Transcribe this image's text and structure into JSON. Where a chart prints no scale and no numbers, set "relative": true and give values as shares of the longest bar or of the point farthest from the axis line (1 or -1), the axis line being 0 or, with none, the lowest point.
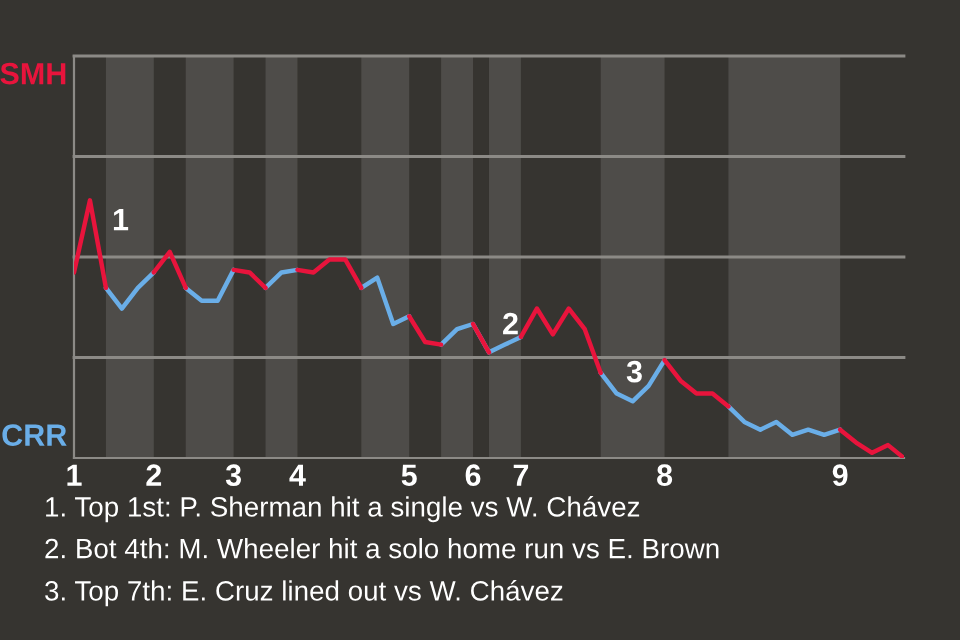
{
  "chart_data": {
    "type": "line",
    "categories": [
      "1",
      null,
      null,
      null,
      null,
      "2",
      null,
      null,
      null,
      null,
      "3",
      null,
      null,
      null,
      "4",
      null,
      null,
      null,
      null,
      null,
      null,
      "5",
      null,
      null,
      null,
      "6",
      null,
      null,
      "7",
      null,
      null,
      null,
      null,
      null,
      null,
      null,
      null,
      "8",
      null,
      null,
      null,
      null,
      null,
      null,
      null,
      null,
      null,
      null,
      "9",
      null,
      null,
      null,
      null
    ],
    "relative": true,
    "series": [
      {
        "name": "SMH",
        "color": "#e8143c",
        "values": [
          0.72,
          1,
          0.66,
          null,
          null,
          0.72,
          0.8,
          0.66,
          null,
          null,
          0.73,
          0.72,
          0.66,
          null,
          0.73,
          0.72,
          0.77,
          0.77,
          0.66,
          null,
          null,
          0.55,
          0.45,
          0.44,
          null,
          0.52,
          0.41,
          null,
          0.47,
          0.58,
          0.48,
          0.58,
          0.5,
          0.33,
          null,
          null,
          null,
          0.38,
          0.3,
          0.25,
          0.25,
          0.2,
          null,
          null,
          null,
          null,
          null,
          null,
          0.11,
          0.06,
          0.02,
          0.05,
          0
        ]
      },
      {
        "name": "CRR",
        "color": "#6aaee8",
        "values": [
          null,
          null,
          0.66,
          0.58,
          0.66,
          0.72,
          null,
          0.66,
          0.61,
          0.61,
          0.73,
          null,
          0.66,
          0.72,
          0.73,
          null,
          null,
          null,
          0.66,
          0.7,
          0.52,
          0.55,
          null,
          0.44,
          0.5,
          0.52,
          0.41,
          0.44,
          0.47,
          null,
          null,
          null,
          null,
          0.33,
          0.25,
          0.22,
          0.28,
          0.38,
          null,
          null,
          null,
          0.2,
          0.14,
          0.11,
          0.14,
          0.09,
          0.11,
          0.09,
          0.11,
          null,
          null,
          null,
          null
        ]
      }
    ],
    "ref_lines": [
      {
        "axis": "y",
        "value": 0.39,
        "color": "#8c8a86"
      },
      {
        "axis": "y",
        "value": 0.78,
        "color": "#8c8a86"
      },
      {
        "axis": "y",
        "value": 1.17,
        "color": "#8c8a86"
      },
      {
        "axis": "y",
        "value": 1.56,
        "color": "#8c8a86"
      }
    ],
    "marker": "none",
    "line_style": "solid",
    "annotations": [
      "1",
      "2",
      "3",
      "1. Top 1st: P. Sherman hit a single vs W. Chávez",
      "2. Bot 4th: M. Wheeler hit a solo home run vs E. Brown",
      "3. Top 7th: E. Cruz lined out vs W. Chávez"
    ]
  }
}
